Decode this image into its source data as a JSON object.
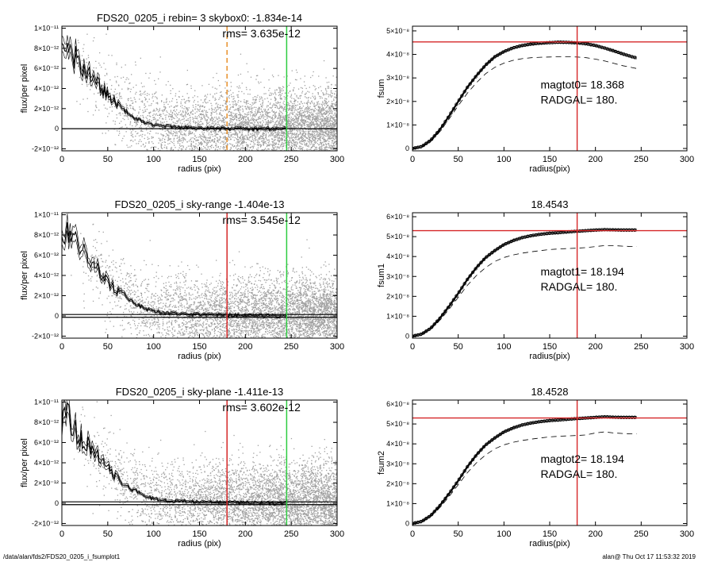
{
  "footer": {
    "left": "/data/alan/fds2/FDS20_0205_i_fsumplot1",
    "right": "alan@  Thu Oct 17 11:53:32 2019"
  },
  "chart_data": [
    {
      "type": "scatter",
      "id": "profile-top",
      "title": "FDS20_0205_i rebin= 3    skybox0: -1.834e-14",
      "annotation": "rms= 3.635e-12",
      "xlabel": "radius (pix)",
      "ylabel": "flux/per pixel",
      "xlim": [
        0,
        300
      ],
      "ylim": [
        -2.2e-12,
        1.02e-11
      ],
      "x_ticks": [
        "0",
        "50",
        "100",
        "150",
        "200",
        "250",
        "300"
      ],
      "y_ticks": [
        {
          "value": 1e-11,
          "label": "1×10⁻¹¹"
        },
        {
          "value": 8e-12,
          "label": "8×10⁻¹²"
        },
        {
          "value": 6e-12,
          "label": "6×10⁻¹²"
        },
        {
          "value": 4e-12,
          "label": "4×10⁻¹²"
        },
        {
          "value": 2e-12,
          "label": "2×10⁻¹²"
        },
        {
          "value": 0,
          "label": "0"
        },
        {
          "value": -2e-12,
          "label": "-2×10⁻¹²"
        }
      ],
      "profile": {
        "x": [
          0,
          5,
          10,
          20,
          30,
          40,
          50,
          60,
          70,
          80,
          90,
          100,
          110,
          120,
          130,
          140,
          150,
          160,
          170,
          180,
          190,
          200,
          210,
          220,
          230,
          240,
          245
        ],
        "y": [
          8e-12,
          8.8e-12,
          7.6e-12,
          6.4e-12,
          5.4e-12,
          4.3e-12,
          3.3e-12,
          2.4e-12,
          1.7e-12,
          1.1e-12,
          6.5e-13,
          3.6e-13,
          2.4e-13,
          2e-13,
          1.3e-13,
          1e-13,
          7e-14,
          5e-14,
          3e-14,
          1e-14,
          0,
          -1e-14,
          -1e-14,
          -2e-14,
          -2e-14,
          -1e-14,
          -1e-14
        ]
      },
      "baseline": [
        0
      ],
      "vlines": [
        {
          "x": 180,
          "color": "#e8902a",
          "style": "dashed"
        },
        {
          "x": 245,
          "color": "#2ecc40",
          "style": "solid"
        }
      ],
      "scatter": {
        "color": "#a0a0a0",
        "noise_rms": 3.6e-12
      }
    },
    {
      "type": "line",
      "id": "growth-top",
      "title": "",
      "xlabel": "radius(pix)",
      "ylabel": "fsum",
      "xlim": [
        0,
        300
      ],
      "ylim": [
        -1e-09,
        5.2e-08
      ],
      "x_ticks": [
        "0",
        "50",
        "100",
        "150",
        "200",
        "250",
        "300"
      ],
      "y_ticks": [
        {
          "value": 0,
          "label": "0"
        },
        {
          "value": 1e-08,
          "label": "1×10⁻⁸"
        },
        {
          "value": 2e-08,
          "label": "2×10⁻⁸"
        },
        {
          "value": 3e-08,
          "label": "3×10⁻⁸"
        },
        {
          "value": 4e-08,
          "label": "4×10⁻⁸"
        },
        {
          "value": 5e-08,
          "label": "5×10⁻⁸"
        }
      ],
      "annotations": [
        "magtot0=  18.368",
        "RADGAL=    180."
      ],
      "curve": {
        "x": [
          0,
          10,
          20,
          30,
          40,
          50,
          60,
          70,
          80,
          90,
          100,
          110,
          120,
          130,
          140,
          150,
          160,
          170,
          180,
          190,
          200,
          210,
          220,
          230,
          240,
          245
        ],
        "y": [
          0,
          8e-10,
          3.5e-09,
          8e-09,
          1.38e-08,
          2e-08,
          2.6e-08,
          3.1e-08,
          3.55e-08,
          3.9e-08,
          4.12e-08,
          4.28e-08,
          4.38e-08,
          4.44e-08,
          4.48e-08,
          4.5e-08,
          4.52e-08,
          4.51e-08,
          4.49e-08,
          4.45e-08,
          4.38e-08,
          4.27e-08,
          4.15e-08,
          4.02e-08,
          3.9e-08,
          3.85e-08
        ]
      },
      "dashed_curve": {
        "x": [
          0,
          10,
          20,
          30,
          40,
          50,
          60,
          70,
          80,
          90,
          100,
          110,
          120,
          130,
          140,
          150,
          160,
          170,
          180,
          190,
          200,
          210,
          220,
          230,
          240,
          245
        ],
        "y": [
          0,
          7e-10,
          3e-09,
          7.2e-09,
          1.25e-08,
          1.82e-08,
          2.35e-08,
          2.8e-08,
          3.18e-08,
          3.45e-08,
          3.63e-08,
          3.75e-08,
          3.82e-08,
          3.86e-08,
          3.88e-08,
          3.89e-08,
          3.9e-08,
          3.9e-08,
          3.89e-08,
          3.86e-08,
          3.8e-08,
          3.72e-08,
          3.62e-08,
          3.52e-08,
          3.44e-08,
          3.4e-08
        ]
      },
      "hline": 4.53e-08,
      "vline": 180
    },
    {
      "type": "scatter",
      "id": "profile-mid",
      "title": "FDS20_0205_i sky-range -1.404e-13",
      "annotation": "rms= 3.545e-12",
      "xlabel": "radius (pix)",
      "ylabel": "flux/per pixel",
      "xlim": [
        0,
        300
      ],
      "ylim": [
        -2.2e-12,
        1.02e-11
      ],
      "x_ticks": [
        "0",
        "50",
        "100",
        "150",
        "200",
        "250",
        "300"
      ],
      "y_ticks": [
        {
          "value": 1e-11,
          "label": "1×10⁻¹¹"
        },
        {
          "value": 8e-12,
          "label": "8×10⁻¹²"
        },
        {
          "value": 6e-12,
          "label": "6×10⁻¹²"
        },
        {
          "value": 4e-12,
          "label": "4×10⁻¹²"
        },
        {
          "value": 2e-12,
          "label": "2×10⁻¹²"
        },
        {
          "value": 0,
          "label": "0"
        },
        {
          "value": -2e-12,
          "label": "-2×10⁻¹²"
        }
      ],
      "profile": {
        "x": [
          0,
          5,
          10,
          20,
          30,
          40,
          50,
          60,
          70,
          80,
          90,
          100,
          110,
          120,
          130,
          140,
          150,
          160,
          170,
          180,
          190,
          200,
          210,
          220,
          230,
          240,
          245
        ],
        "y": [
          8.1e-12,
          8.9e-12,
          7.7e-12,
          6.5e-12,
          5.5e-12,
          4.4e-12,
          3.4e-12,
          2.5e-12,
          1.8e-12,
          1.2e-12,
          7.5e-13,
          4.5e-13,
          3.2e-13,
          2.7e-13,
          2e-13,
          1.6e-13,
          1.3e-13,
          1e-13,
          8e-14,
          6e-14,
          4e-14,
          3e-14,
          2e-14,
          1e-14,
          1e-14,
          1e-14,
          1e-14
        ]
      },
      "baseline": [
        1.4e-13,
        -1.4e-13
      ],
      "vlines": [
        {
          "x": 180,
          "color": "#d62728",
          "style": "solid"
        },
        {
          "x": 245,
          "color": "#2ecc40",
          "style": "solid"
        }
      ],
      "scatter": {
        "color": "#a0a0a0",
        "noise_rms": 3.5e-12
      }
    },
    {
      "type": "line",
      "id": "growth-mid",
      "title": "18.4543",
      "xlabel": "radius(pix)",
      "ylabel": "fsum1",
      "xlim": [
        0,
        300
      ],
      "ylim": [
        -1e-09,
        6.2e-08
      ],
      "x_ticks": [
        "0",
        "50",
        "100",
        "150",
        "200",
        "250",
        "300"
      ],
      "y_ticks": [
        {
          "value": 0,
          "label": "0"
        },
        {
          "value": 1e-08,
          "label": "1×10⁻⁸"
        },
        {
          "value": 2e-08,
          "label": "2×10⁻⁸"
        },
        {
          "value": 3e-08,
          "label": "3×10⁻⁸"
        },
        {
          "value": 4e-08,
          "label": "4×10⁻⁸"
        },
        {
          "value": 5e-08,
          "label": "5×10⁻⁸"
        },
        {
          "value": 6e-08,
          "label": "6×10⁻⁸"
        }
      ],
      "annotations": [
        "magtot1=  18.194",
        "RADGAL=    180."
      ],
      "curve": {
        "x": [
          0,
          10,
          20,
          30,
          40,
          50,
          60,
          70,
          80,
          90,
          100,
          110,
          120,
          130,
          140,
          150,
          160,
          170,
          180,
          190,
          200,
          210,
          220,
          230,
          240,
          245
        ],
        "y": [
          0,
          1e-09,
          4e-09,
          9e-09,
          1.5e-08,
          2.15e-08,
          2.85e-08,
          3.45e-08,
          3.95e-08,
          4.3e-08,
          4.6e-08,
          4.8e-08,
          4.95e-08,
          5.05e-08,
          5.12e-08,
          5.17e-08,
          5.2e-08,
          5.24e-08,
          5.27e-08,
          5.3e-08,
          5.33e-08,
          5.35e-08,
          5.34e-08,
          5.33e-08,
          5.33e-08,
          5.33e-08
        ]
      },
      "dashed_curve": {
        "x": [
          0,
          10,
          20,
          30,
          40,
          50,
          60,
          70,
          80,
          90,
          100,
          110,
          120,
          130,
          140,
          150,
          160,
          170,
          180,
          190,
          200,
          210,
          220,
          230,
          240,
          245
        ],
        "y": [
          0,
          9e-10,
          3.5e-09,
          8e-09,
          1.35e-08,
          1.95e-08,
          2.55e-08,
          3.05e-08,
          3.45e-08,
          3.75e-08,
          3.95e-08,
          4.08e-08,
          4.17e-08,
          4.24e-08,
          4.3e-08,
          4.35e-08,
          4.38e-08,
          4.4e-08,
          4.42e-08,
          4.45e-08,
          4.5e-08,
          4.55e-08,
          4.55e-08,
          4.52e-08,
          4.5e-08,
          4.5e-08
        ]
      },
      "hline": 5.3e-08,
      "vline": 180
    },
    {
      "type": "scatter",
      "id": "profile-bot",
      "title": "FDS20_0205_i sky-plane -1.411e-13",
      "annotation": "rms= 3.602e-12",
      "xlabel": "radius (pix)",
      "ylabel": "flux/per pixel",
      "xlim": [
        0,
        300
      ],
      "ylim": [
        -2.2e-12,
        1.02e-11
      ],
      "x_ticks": [
        "0",
        "50",
        "100",
        "150",
        "200",
        "250",
        "300"
      ],
      "y_ticks": [
        {
          "value": 1e-11,
          "label": "1×10⁻¹¹"
        },
        {
          "value": 8e-12,
          "label": "8×10⁻¹²"
        },
        {
          "value": 6e-12,
          "label": "6×10⁻¹²"
        },
        {
          "value": 4e-12,
          "label": "4×10⁻¹²"
        },
        {
          "value": 2e-12,
          "label": "2×10⁻¹²"
        },
        {
          "value": 0,
          "label": "0"
        },
        {
          "value": -2e-12,
          "label": "-2×10⁻¹²"
        }
      ],
      "profile": {
        "x": [
          0,
          5,
          10,
          20,
          30,
          40,
          50,
          60,
          70,
          80,
          90,
          100,
          110,
          120,
          130,
          140,
          150,
          160,
          170,
          180,
          190,
          200,
          210,
          220,
          230,
          240,
          245
        ],
        "y": [
          8.1e-12,
          8.9e-12,
          7.7e-12,
          6.5e-12,
          5.5e-12,
          4.4e-12,
          3.4e-12,
          2.5e-12,
          1.8e-12,
          1.2e-12,
          7.5e-13,
          4.5e-13,
          3.2e-13,
          2.7e-13,
          2e-13,
          1.6e-13,
          1.3e-13,
          1e-13,
          8e-14,
          6e-14,
          4e-14,
          3e-14,
          2e-14,
          1e-14,
          1e-14,
          1e-14,
          1e-14
        ]
      },
      "baseline": [
        1.4e-13,
        -1.4e-13
      ],
      "vlines": [
        {
          "x": 180,
          "color": "#d62728",
          "style": "solid"
        },
        {
          "x": 245,
          "color": "#2ecc40",
          "style": "solid"
        }
      ],
      "scatter": {
        "color": "#a0a0a0",
        "noise_rms": 3.6e-12
      }
    },
    {
      "type": "line",
      "id": "growth-bot",
      "title": "18.4528",
      "xlabel": "radius(pix)",
      "ylabel": "fsum2",
      "xlim": [
        0,
        300
      ],
      "ylim": [
        -1e-09,
        6.2e-08
      ],
      "x_ticks": [
        "0",
        "50",
        "100",
        "150",
        "200",
        "250",
        "300"
      ],
      "y_ticks": [
        {
          "value": 0,
          "label": "0"
        },
        {
          "value": 1e-08,
          "label": "1×10⁻⁸"
        },
        {
          "value": 2e-08,
          "label": "2×10⁻⁸"
        },
        {
          "value": 3e-08,
          "label": "3×10⁻⁸"
        },
        {
          "value": 4e-08,
          "label": "4×10⁻⁸"
        },
        {
          "value": 5e-08,
          "label": "5×10⁻⁸"
        },
        {
          "value": 6e-08,
          "label": "6×10⁻⁸"
        }
      ],
      "annotations": [
        "magtot2=  18.194",
        "RADGAL=    180."
      ],
      "curve": {
        "x": [
          0,
          10,
          20,
          30,
          40,
          50,
          60,
          70,
          80,
          90,
          100,
          110,
          120,
          130,
          140,
          150,
          160,
          170,
          180,
          190,
          200,
          210,
          220,
          230,
          240,
          245
        ],
        "y": [
          0,
          1e-09,
          4e-09,
          9e-09,
          1.5e-08,
          2.15e-08,
          2.85e-08,
          3.45e-08,
          3.95e-08,
          4.3e-08,
          4.6e-08,
          4.8e-08,
          4.95e-08,
          5.05e-08,
          5.12e-08,
          5.17e-08,
          5.2e-08,
          5.24e-08,
          5.27e-08,
          5.3e-08,
          5.33e-08,
          5.36e-08,
          5.34e-08,
          5.33e-08,
          5.33e-08,
          5.33e-08
        ]
      },
      "dashed_curve": {
        "x": [
          0,
          10,
          20,
          30,
          40,
          50,
          60,
          70,
          80,
          90,
          100,
          110,
          120,
          130,
          140,
          150,
          160,
          170,
          180,
          190,
          200,
          210,
          220,
          230,
          240,
          245
        ],
        "y": [
          0,
          9e-10,
          3.5e-09,
          8e-09,
          1.35e-08,
          1.95e-08,
          2.55e-08,
          3.05e-08,
          3.45e-08,
          3.75e-08,
          3.95e-08,
          4.08e-08,
          4.17e-08,
          4.24e-08,
          4.3e-08,
          4.35e-08,
          4.38e-08,
          4.4e-08,
          4.42e-08,
          4.45e-08,
          4.55e-08,
          4.6e-08,
          4.55e-08,
          4.52e-08,
          4.5e-08,
          4.5e-08
        ]
      },
      "hline": 5.3e-08,
      "vline": 180
    }
  ]
}
